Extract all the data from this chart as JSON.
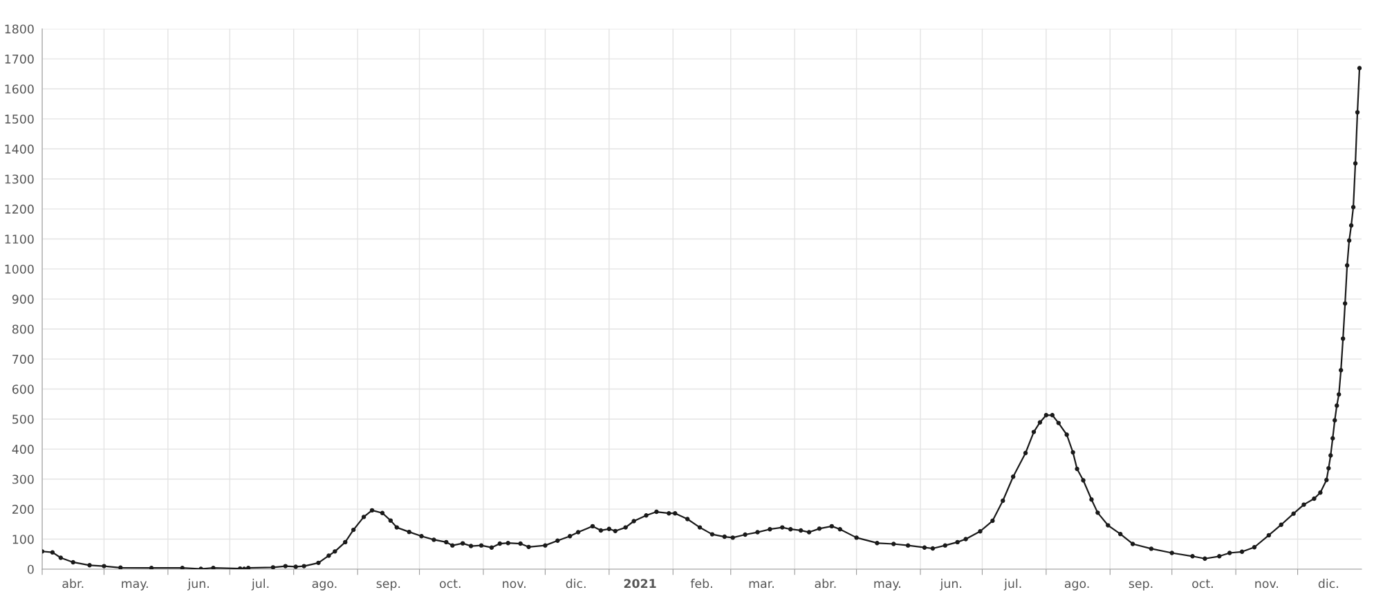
{
  "chart_data": {
    "type": "line",
    "marker": "circle",
    "line_style": "solid",
    "grid": true,
    "legend": false,
    "xlim": [
      "2020-04-01",
      "2022-01-01"
    ],
    "xticks": [
      {
        "value": "2020-04-01",
        "label": null
      },
      {
        "value": "2020-04-16",
        "label": "abr."
      },
      {
        "value": "2020-05-01",
        "label": null
      },
      {
        "value": "2020-05-16",
        "label": "may."
      },
      {
        "value": "2020-06-01",
        "label": null
      },
      {
        "value": "2020-06-16",
        "label": "jun."
      },
      {
        "value": "2020-07-01",
        "label": null
      },
      {
        "value": "2020-07-16",
        "label": "jul."
      },
      {
        "value": "2020-08-01",
        "label": null
      },
      {
        "value": "2020-08-16",
        "label": "ago."
      },
      {
        "value": "2020-09-01",
        "label": null
      },
      {
        "value": "2020-09-16",
        "label": "sep."
      },
      {
        "value": "2020-10-01",
        "label": null
      },
      {
        "value": "2020-10-16",
        "label": "oct."
      },
      {
        "value": "2020-11-01",
        "label": null
      },
      {
        "value": "2020-11-16",
        "label": "nov."
      },
      {
        "value": "2020-12-01",
        "label": null
      },
      {
        "value": "2020-12-16",
        "label": "dic."
      },
      {
        "value": "2021-01-01",
        "label": null
      },
      {
        "value": "2021-01-16",
        "label": "2021"
      },
      {
        "value": "2021-02-01",
        "label": null
      },
      {
        "value": "2021-02-15",
        "label": "feb."
      },
      {
        "value": "2021-03-01",
        "label": null
      },
      {
        "value": "2021-03-16",
        "label": "mar."
      },
      {
        "value": "2021-04-01",
        "label": null
      },
      {
        "value": "2021-04-16",
        "label": "abr."
      },
      {
        "value": "2021-05-01",
        "label": null
      },
      {
        "value": "2021-05-16",
        "label": "may."
      },
      {
        "value": "2021-06-01",
        "label": null
      },
      {
        "value": "2021-06-16",
        "label": "jun."
      },
      {
        "value": "2021-07-01",
        "label": null
      },
      {
        "value": "2021-07-16",
        "label": "jul."
      },
      {
        "value": "2021-08-01",
        "label": null
      },
      {
        "value": "2021-08-16",
        "label": "ago."
      },
      {
        "value": "2021-09-01",
        "label": null
      },
      {
        "value": "2021-09-16",
        "label": "sep."
      },
      {
        "value": "2021-10-01",
        "label": null
      },
      {
        "value": "2021-10-16",
        "label": "oct."
      },
      {
        "value": "2021-11-01",
        "label": null
      },
      {
        "value": "2021-11-16",
        "label": "nov."
      },
      {
        "value": "2021-12-01",
        "label": null
      },
      {
        "value": "2021-12-16",
        "label": "dic."
      }
    ],
    "ylim": [
      0,
      1800
    ],
    "yticks": [
      0,
      100,
      200,
      300,
      400,
      500,
      600,
      700,
      800,
      900,
      1000,
      1100,
      1200,
      1300,
      1400,
      1500,
      1600,
      1700,
      1800
    ],
    "x": [
      "2020-04-01",
      "2020-04-06",
      "2020-04-10",
      "2020-04-16",
      "2020-04-24",
      "2020-05-01",
      "2020-05-09",
      "2020-05-24",
      "2020-06-08",
      "2020-06-17",
      "2020-06-23",
      "2020-07-06",
      "2020-07-08",
      "2020-07-10",
      "2020-07-22",
      "2020-07-28",
      "2020-08-02",
      "2020-08-06",
      "2020-08-13",
      "2020-08-18",
      "2020-08-21",
      "2020-08-26",
      "2020-08-30",
      "2020-09-04",
      "2020-09-08",
      "2020-09-13",
      "2020-09-17",
      "2020-09-20",
      "2020-09-26",
      "2020-10-02",
      "2020-10-08",
      "2020-10-14",
      "2020-10-17",
      "2020-10-22",
      "2020-10-26",
      "2020-10-31",
      "2020-11-05",
      "2020-11-09",
      "2020-11-13",
      "2020-11-19",
      "2020-11-23",
      "2020-12-01",
      "2020-12-07",
      "2020-12-13",
      "2020-12-17",
      "2020-12-24",
      "2020-12-28",
      "2021-01-01",
      "2021-01-04",
      "2021-01-09",
      "2021-01-13",
      "2021-01-19",
      "2021-01-24",
      "2021-01-30",
      "2021-02-02",
      "2021-02-08",
      "2021-02-14",
      "2021-02-20",
      "2021-02-26",
      "2021-03-02",
      "2021-03-08",
      "2021-03-14",
      "2021-03-20",
      "2021-03-26",
      "2021-03-30",
      "2021-04-04",
      "2021-04-08",
      "2021-04-13",
      "2021-04-19",
      "2021-04-23",
      "2021-05-01",
      "2021-05-11",
      "2021-05-19",
      "2021-05-26",
      "2021-06-03",
      "2021-06-07",
      "2021-06-13",
      "2021-06-19",
      "2021-06-23",
      "2021-06-30",
      "2021-07-06",
      "2021-07-11",
      "2021-07-16",
      "2021-07-22",
      "2021-07-26",
      "2021-07-29",
      "2021-08-01",
      "2021-08-04",
      "2021-08-07",
      "2021-08-11",
      "2021-08-14",
      "2021-08-16",
      "2021-08-19",
      "2021-08-23",
      "2021-08-26",
      "2021-08-31",
      "2021-09-06",
      "2021-09-12",
      "2021-09-21",
      "2021-10-01",
      "2021-10-11",
      "2021-10-17",
      "2021-10-24",
      "2021-10-29",
      "2021-11-04",
      "2021-11-10",
      "2021-11-17",
      "2021-11-23",
      "2021-11-29",
      "2021-12-04",
      "2021-12-09",
      "2021-12-12",
      "2021-12-15",
      "2021-12-16",
      "2021-12-17",
      "2021-12-18",
      "2021-12-19",
      "2021-12-20",
      "2021-12-21",
      "2021-12-22",
      "2021-12-23",
      "2021-12-24",
      "2021-12-25",
      "2021-12-26",
      "2021-12-27",
      "2021-12-28",
      "2021-12-29",
      "2021-12-30",
      "2021-12-31"
    ],
    "series": [
      {
        "color": "#1a1a1a",
        "values": [
          59,
          56,
          38,
          23,
          13,
          10,
          5,
          4,
          4,
          1,
          4,
          2,
          1,
          4,
          6,
          10,
          8,
          10,
          21,
          45,
          59,
          90,
          131,
          174,
          196,
          187,
          162,
          139,
          124,
          110,
          98,
          90,
          79,
          86,
          77,
          79,
          72,
          85,
          87,
          85,
          74,
          79,
          95,
          110,
          123,
          143,
          129,
          134,
          127,
          139,
          160,
          179,
          191,
          186,
          186,
          167,
          139,
          116,
          108,
          105,
          115,
          123,
          133,
          139,
          133,
          129,
          123,
          135,
          143,
          133,
          105,
          87,
          84,
          79,
          72,
          69,
          79,
          90,
          100,
          126,
          161,
          228,
          308,
          387,
          457,
          489,
          513,
          513,
          487,
          448,
          389,
          334,
          296,
          232,
          188,
          146,
          117,
          84,
          68,
          54,
          43,
          35,
          43,
          54,
          58,
          73,
          113,
          148,
          185,
          215,
          235,
          255,
          297,
          336,
          379,
          436,
          496,
          545,
          582,
          663,
          768,
          885,
          1012,
          1095,
          1145,
          1206,
          1352,
          1522,
          1669
        ]
      }
    ]
  }
}
